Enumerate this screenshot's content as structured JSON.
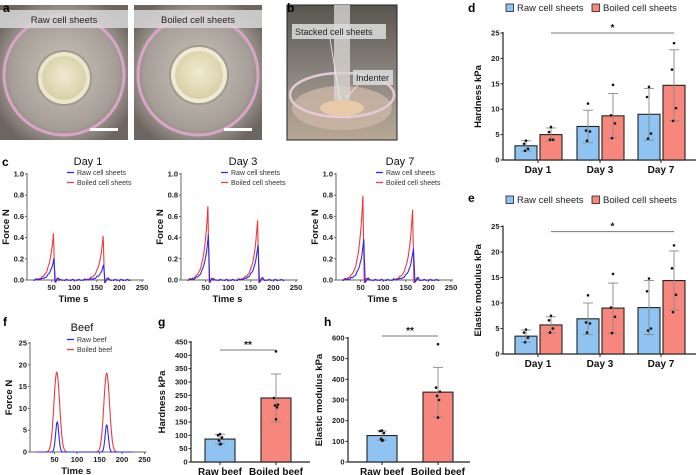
{
  "panels": {
    "a": {
      "letter": "a",
      "labels": [
        "Raw cell sheets",
        "Boiled cell sheets"
      ]
    },
    "b": {
      "letter": "b",
      "labels": [
        "Stacked cell sheets",
        "Indenter"
      ]
    },
    "c": {
      "letter": "c"
    },
    "d": {
      "letter": "d"
    },
    "e": {
      "letter": "e"
    },
    "f": {
      "letter": "f"
    },
    "g": {
      "letter": "g"
    },
    "h": {
      "letter": "h"
    }
  },
  "colors": {
    "raw_line": "#2b2bf0",
    "boiled_line": "#f03a3a",
    "raw_bar": "#8ec3f2",
    "boiled_bar": "#f7877c",
    "scale_bar": "#ffffff"
  },
  "chart_data": [
    {
      "id": "c1",
      "type": "line",
      "title": "Day 1",
      "xlabel": "Time  s",
      "ylabel": "Force  N",
      "xlim": [
        0,
        250
      ],
      "ylim": [
        0,
        1.0
      ],
      "xticks": [
        "50",
        "100",
        "150",
        "200",
        "250"
      ],
      "yticks": [
        "0.0",
        "0.2",
        "0.4",
        "0.6",
        "0.8",
        "1.0"
      ],
      "series": [
        {
          "name": "Raw cell sheets",
          "peaks": [
            {
              "t": 55,
              "force": 0.2
            },
            {
              "t": 165,
              "force": 0.14
            }
          ]
        },
        {
          "name": "Boiled cell sheets",
          "peaks": [
            {
              "t": 54,
              "force": 0.44
            },
            {
              "t": 164,
              "force": 0.41
            }
          ]
        }
      ]
    },
    {
      "id": "c3",
      "type": "line",
      "title": "Day 3",
      "xlabel": "Time  s",
      "ylabel": "Force  N",
      "xlim": [
        0,
        250
      ],
      "ylim": [
        0,
        1.0
      ],
      "xticks": [
        "50",
        "100",
        "150",
        "200",
        "250"
      ],
      "yticks": [
        "0.0",
        "0.2",
        "0.4",
        "0.6",
        "0.8",
        "1.0"
      ],
      "series": [
        {
          "name": "Raw cell sheets",
          "peaks": [
            {
              "t": 56,
              "force": 0.42
            },
            {
              "t": 166,
              "force": 0.33
            }
          ]
        },
        {
          "name": "Boiled cell sheets",
          "peaks": [
            {
              "t": 55,
              "force": 0.69
            },
            {
              "t": 165,
              "force": 0.56
            }
          ]
        }
      ]
    },
    {
      "id": "c7",
      "type": "line",
      "title": "Day 7",
      "xlabel": "Time  s",
      "ylabel": "Force  N",
      "xlim": [
        0,
        250
      ],
      "ylim": [
        0,
        1.0
      ],
      "xticks": [
        "50",
        "100",
        "150",
        "200",
        "250"
      ],
      "yticks": [
        "0.0",
        "0.2",
        "0.4",
        "0.6",
        "0.8",
        "1.0"
      ],
      "series": [
        {
          "name": "Raw cell sheets",
          "peaks": [
            {
              "t": 57,
              "force": 0.38
            },
            {
              "t": 167,
              "force": 0.3
            }
          ]
        },
        {
          "name": "Boiled cell sheets",
          "peaks": [
            {
              "t": 55,
              "force": 0.79
            },
            {
              "t": 165,
              "force": 0.66
            }
          ]
        }
      ]
    },
    {
      "id": "f",
      "type": "line",
      "title": "Beef",
      "xlabel": "Time  s",
      "ylabel": "Force  N",
      "xlim": [
        0,
        250
      ],
      "ylim": [
        0,
        25
      ],
      "xticks": [
        "50",
        "100",
        "150",
        "200",
        "250"
      ],
      "yticks": [
        "0",
        "5",
        "10",
        "15",
        "20",
        "25"
      ],
      "series": [
        {
          "name": "Raw beef",
          "peaks": [
            {
              "t": 56,
              "force": 6.9
            },
            {
              "t": 166,
              "force": 6.2
            }
          ]
        },
        {
          "name": "Boiled beef",
          "peaks": [
            {
              "t": 55,
              "force": 18.3
            },
            {
              "t": 166,
              "force": 18.1
            }
          ]
        }
      ]
    },
    {
      "id": "d",
      "type": "bar",
      "ylabel": "Hardness  kPa",
      "ylim": [
        0,
        25
      ],
      "yticks": [
        "0",
        "5",
        "10",
        "15",
        "20",
        "25"
      ],
      "categories": [
        "Day 1",
        "Day 3",
        "Day 7"
      ],
      "series": [
        {
          "name": "Raw cell sheets",
          "values": [
            2.8,
            6.6,
            9.0
          ],
          "sd": [
            1.0,
            3.2,
            5.1
          ],
          "points": [
            [
              3.8,
              3.2,
              2.2,
              1.8
            ],
            [
              11.1,
              5.8,
              5.6,
              3.8
            ],
            [
              14.4,
              12.4,
              5.2,
              4.2
            ]
          ]
        },
        {
          "name": "Boiled cell sheets",
          "values": [
            5.0,
            8.7,
            14.7
          ],
          "sd": [
            1.3,
            4.4,
            7.0
          ],
          "points": [
            [
              6.5,
              5.5,
              4.0,
              4.0
            ],
            [
              14.8,
              8.8,
              7.2,
              4.3
            ],
            [
              23.0,
              17.8,
              10.2,
              7.7
            ]
          ]
        }
      ],
      "significance": {
        "label": "*",
        "from": "Day 1",
        "to": "Day 7",
        "y": 25
      }
    },
    {
      "id": "e",
      "type": "bar",
      "ylabel": "Elastic modulus kPa",
      "ylim": [
        0,
        25
      ],
      "yticks": [
        "0",
        "5",
        "10",
        "15",
        "20",
        "25"
      ],
      "categories": [
        "Day 1",
        "Day 3",
        "Day 7"
      ],
      "series": [
        {
          "name": "Raw cell sheets",
          "values": [
            3.5,
            6.9,
            9.1
          ],
          "sd": [
            1.2,
            3.1,
            5.3
          ],
          "points": [
            [
              4.8,
              4.2,
              3.2,
              2.3
            ],
            [
              11.5,
              6.2,
              6.0,
              4.2
            ],
            [
              14.8,
              12.3,
              5.0,
              4.6
            ]
          ]
        },
        {
          "name": "Boiled cell sheets",
          "values": [
            5.7,
            9.0,
            14.4
          ],
          "sd": [
            1.6,
            4.9,
            5.8
          ],
          "points": [
            [
              7.5,
              6.6,
              5.0,
              4.2
            ],
            [
              15.7,
              9.1,
              7.3,
              4.1
            ],
            [
              21.3,
              16.8,
              11.6,
              8.2
            ]
          ]
        }
      ],
      "significance": {
        "label": "*",
        "from": "Day 1",
        "to": "Day 7",
        "y": 24
      }
    },
    {
      "id": "g",
      "type": "bar",
      "ylabel": "Hardness  kPa",
      "ylim": [
        0,
        450
      ],
      "yticks": [
        "0",
        "50",
        "100",
        "150",
        "200",
        "250",
        "300",
        "350",
        "400",
        "450"
      ],
      "categories": [
        "Raw beef",
        "Boiled beef"
      ],
      "series": [
        {
          "name": "Hardness",
          "values": [
            86,
            240
          ],
          "sd": [
            18,
            90
          ],
          "points": [
            [
              105,
              100,
              92,
              80,
              68,
              66
            ],
            [
              415,
              240,
              215,
              212,
              205,
              160
            ]
          ]
        }
      ],
      "significance": {
        "label": "**",
        "from": "Raw beef",
        "to": "Boiled beef",
        "y": 435
      }
    },
    {
      "id": "h",
      "type": "bar",
      "ylabel": "Elastic modulus kPa",
      "ylim": [
        0,
        600
      ],
      "yticks": [
        "0",
        "100",
        "200",
        "300",
        "400",
        "500",
        "600"
      ],
      "categories": [
        "Raw beef",
        "Boiled beef"
      ],
      "series": [
        {
          "name": "Elastic modulus",
          "values": [
            128,
            338
          ],
          "sd": [
            22,
            120
          ],
          "points": [
            [
              152,
              150,
              140,
              112,
              105,
              103
            ],
            [
              570,
              360,
              340,
              320,
              300,
              215
            ]
          ]
        }
      ],
      "significance": {
        "label": "**",
        "from": "Raw beef",
        "to": "Boiled beef",
        "y": 600
      }
    }
  ]
}
